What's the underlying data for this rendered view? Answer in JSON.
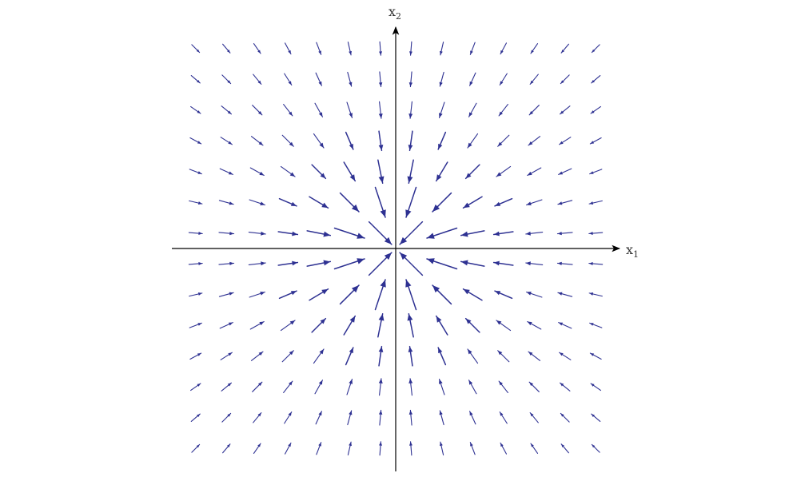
{
  "diagram": {
    "type": "vector-field",
    "description_free": true,
    "field": "sink",
    "grid": {
      "x_values": [
        -6.5,
        -5.5,
        -4.5,
        -3.5,
        -2.5,
        -1.5,
        -0.5,
        0.5,
        1.5,
        2.5,
        3.5,
        4.5,
        5.5,
        6.5
      ],
      "y_values": [
        6.5,
        5.5,
        4.5,
        3.5,
        2.5,
        1.5,
        0.5,
        -0.5,
        -1.5,
        -2.5,
        -3.5,
        -4.5,
        -5.5,
        -6.5
      ]
    },
    "colors": {
      "arrow": "#2e3192",
      "axis": "#000000",
      "label": "#333333"
    }
  },
  "axes": {
    "x_label_main": "x",
    "x_label_sub": "1",
    "y_label_main": "x",
    "y_label_sub": "2"
  }
}
